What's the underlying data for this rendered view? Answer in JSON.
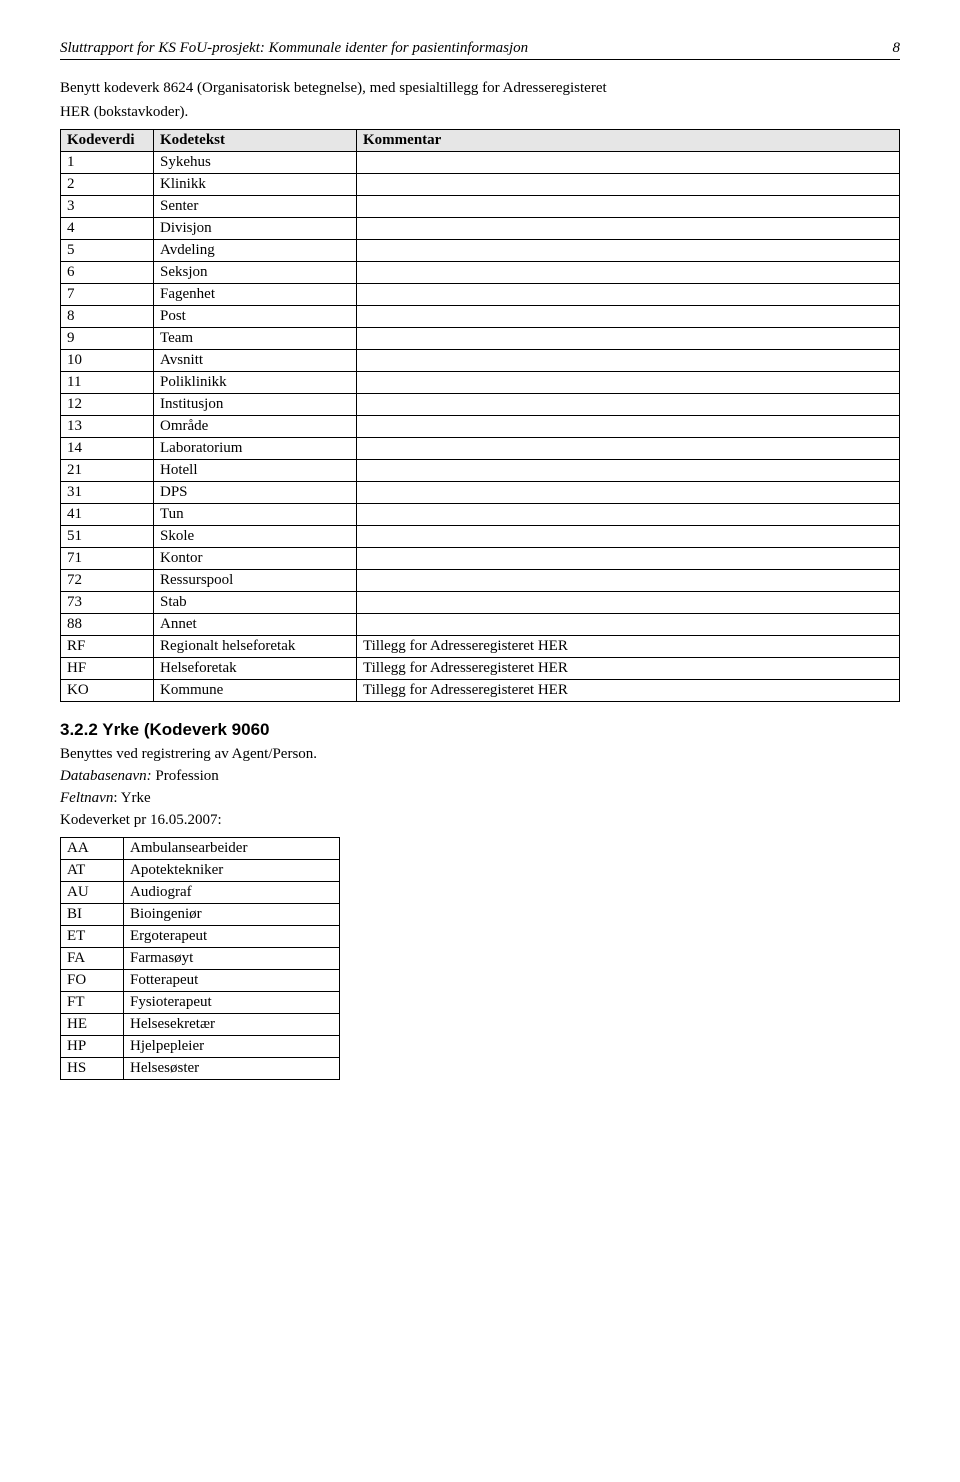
{
  "header": {
    "title": "Sluttrapport for KS FoU-prosjekt: Kommunale identer for pasientinformasjon",
    "page_number": "8"
  },
  "intro": {
    "line1": "Benytt kodeverk 8624 (Organisatorisk betegnelse), med spesialtillegg for Adresseregisteret",
    "line2": "HER (bokstavkoder)."
  },
  "table1": {
    "headers": [
      "Kodeverdi",
      "Kodetekst",
      "Kommentar"
    ],
    "rows": [
      [
        "1",
        "Sykehus",
        ""
      ],
      [
        "2",
        "Klinikk",
        ""
      ],
      [
        "3",
        "Senter",
        ""
      ],
      [
        "4",
        "Divisjon",
        ""
      ],
      [
        "5",
        "Avdeling",
        ""
      ],
      [
        "6",
        "Seksjon",
        ""
      ],
      [
        "7",
        "Fagenhet",
        ""
      ],
      [
        "8",
        "Post",
        ""
      ],
      [
        "9",
        "Team",
        ""
      ],
      [
        "10",
        "Avsnitt",
        ""
      ],
      [
        "11",
        "Poliklinikk",
        ""
      ],
      [
        "12",
        "Institusjon",
        ""
      ],
      [
        "13",
        "Område",
        ""
      ],
      [
        "14",
        "Laboratorium",
        ""
      ],
      [
        "21",
        "Hotell",
        ""
      ],
      [
        "31",
        "DPS",
        ""
      ],
      [
        "41",
        "Tun",
        ""
      ],
      [
        "51",
        "Skole",
        ""
      ],
      [
        "71",
        "Kontor",
        ""
      ],
      [
        "72",
        "Ressurspool",
        ""
      ],
      [
        "73",
        "Stab",
        ""
      ],
      [
        "88",
        "Annet",
        ""
      ],
      [
        "RF",
        "Regionalt helseforetak",
        "Tillegg for Adresseregisteret HER"
      ],
      [
        "HF",
        "Helseforetak",
        "Tillegg for Adresseregisteret HER"
      ],
      [
        "KO",
        "Kommune",
        "Tillegg for Adresseregisteret HER"
      ]
    ]
  },
  "section322": {
    "heading": "3.2.2  Yrke (Kodeverk 9060",
    "line1": "Benyttes ved registrering av Agent/Person.",
    "line2_prefix": "Databasenavn:",
    "line2_value": " Profession",
    "line3_prefix": "Feltnavn",
    "line3_value": ": Yrke",
    "line4": "Kodeverket pr 16.05.2007:"
  },
  "table2": {
    "rows": [
      [
        "AA",
        "Ambulansearbeider"
      ],
      [
        "AT",
        "Apotektekniker"
      ],
      [
        "AU",
        "Audiograf"
      ],
      [
        "BI",
        "Bioingeniør"
      ],
      [
        "ET",
        "Ergoterapeut"
      ],
      [
        "FA",
        "Farmasøyt"
      ],
      [
        "FO",
        "Fotterapeut"
      ],
      [
        "FT",
        "Fysioterapeut"
      ],
      [
        "HE",
        "Helsesekretær"
      ],
      [
        "HP",
        "Hjelpepleier"
      ],
      [
        "HS",
        "Helsesøster"
      ]
    ]
  }
}
